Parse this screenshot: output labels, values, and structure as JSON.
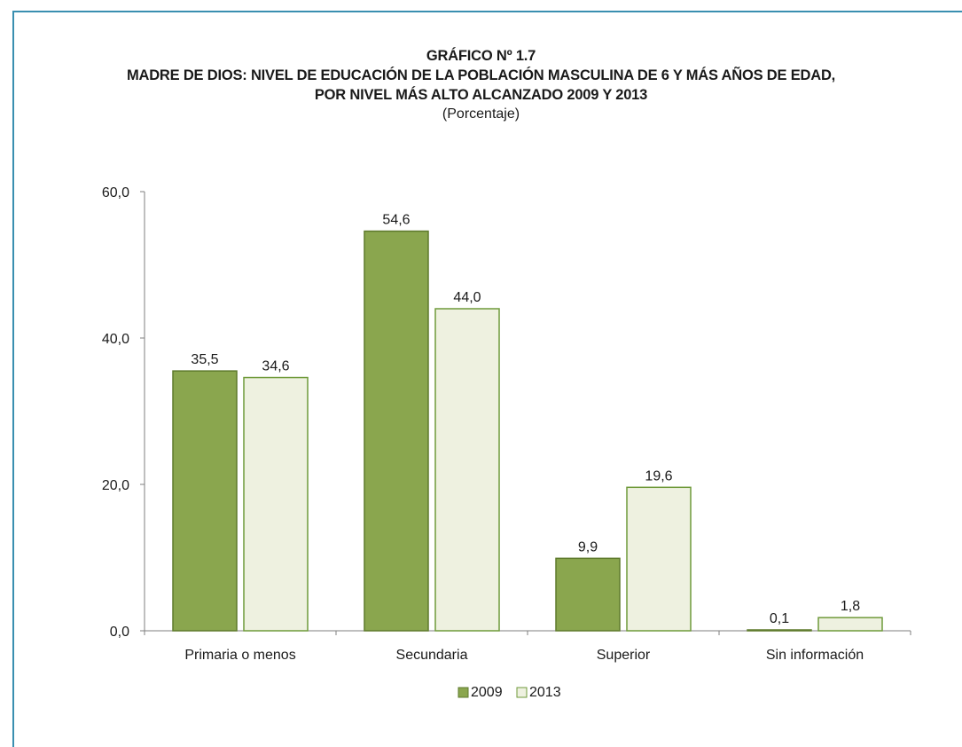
{
  "chart_data": {
    "type": "bar",
    "title_line1": "GRÁFICO Nº 1.7",
    "title_line2": "MADRE DE DIOS: NIVEL DE EDUCACIÓN DE LA POBLACIÓN MASCULINA DE 6 Y MÁS AÑOS DE EDAD,",
    "title_line3": "POR NIVEL MÁS ALTO ALCANZADO 2009 Y 2013",
    "subtitle": "(Porcentaje)",
    "categories": [
      "Primaria o menos",
      "Secundaria",
      "Superior",
      "Sin información"
    ],
    "series": [
      {
        "name": "2009",
        "values": [
          35.5,
          54.6,
          9.9,
          0.1
        ],
        "labels": [
          "35,5",
          "54,6",
          "9,9",
          "0,1"
        ],
        "color": "#8aa64e",
        "stroke": "#5e7a2c"
      },
      {
        "name": "2013",
        "values": [
          34.6,
          44.0,
          19.6,
          1.8
        ],
        "labels": [
          "34,6",
          "44,0",
          "19,6",
          "1,8"
        ],
        "color": "#eef1e0",
        "stroke": "#6f9a3a"
      }
    ],
    "ylim": [
      0,
      60
    ],
    "yticks": [
      0,
      20,
      40,
      60
    ],
    "ytick_labels": [
      "0,0",
      "20,0",
      "40,0",
      "60,0"
    ],
    "grid": false,
    "legend_position": "bottom"
  }
}
